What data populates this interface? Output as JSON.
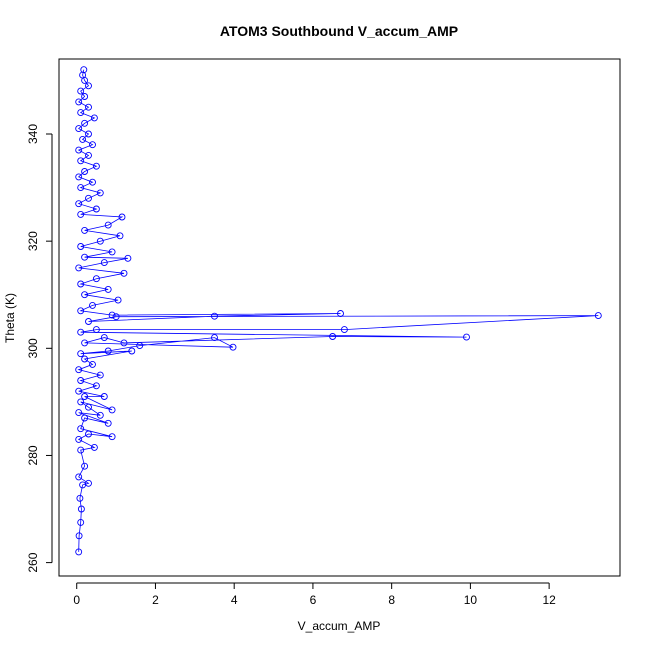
{
  "chart_data": {
    "type": "line",
    "title": "ATOM3 Southbound V_accum_AMP",
    "xlabel": "V_accum_AMP",
    "ylabel": "Theta (K)",
    "xlim": [
      -0.45,
      13.8
    ],
    "ylim": [
      257.5,
      354
    ],
    "xticks": [
      0,
      2,
      4,
      6,
      8,
      10,
      12
    ],
    "yticks": [
      260,
      280,
      300,
      320,
      340
    ],
    "grid": false,
    "legend": "none",
    "marker": "open-circle",
    "color": "#0000ff",
    "series": [
      {
        "points": [
          [
            0.05,
            262
          ],
          [
            0.06,
            265
          ],
          [
            0.1,
            267.5
          ],
          [
            0.12,
            270
          ],
          [
            0.08,
            272
          ],
          [
            0.15,
            274.5
          ],
          [
            0.3,
            274.8
          ],
          [
            0.05,
            276
          ],
          [
            0.2,
            278
          ],
          [
            0.1,
            281
          ],
          [
            0.45,
            281.5
          ],
          [
            0.05,
            283
          ],
          [
            0.3,
            284
          ],
          [
            0.9,
            283.5
          ],
          [
            0.1,
            285
          ],
          [
            0.2,
            287
          ],
          [
            0.8,
            286
          ],
          [
            0.05,
            288
          ],
          [
            0.6,
            287.5
          ],
          [
            0.3,
            289
          ],
          [
            0.1,
            290
          ],
          [
            0.9,
            288.5
          ],
          [
            0.2,
            291
          ],
          [
            0.7,
            291
          ],
          [
            0.05,
            292
          ],
          [
            0.5,
            293
          ],
          [
            0.1,
            294
          ],
          [
            0.6,
            295
          ],
          [
            0.05,
            296
          ],
          [
            0.4,
            297
          ],
          [
            0.2,
            298
          ],
          [
            1.4,
            299.5
          ],
          [
            0.1,
            299
          ],
          [
            0.8,
            299.5
          ],
          [
            1.6,
            300.5
          ],
          [
            3.5,
            302
          ],
          [
            3.97,
            300.2
          ],
          [
            0.2,
            301
          ],
          [
            0.7,
            302
          ],
          [
            1.2,
            301
          ],
          [
            6.5,
            302.2
          ],
          [
            9.9,
            302.1
          ],
          [
            0.1,
            303
          ],
          [
            0.5,
            303.5
          ],
          [
            6.8,
            303.5
          ],
          [
            13.25,
            306.1
          ],
          [
            1.0,
            305.9
          ],
          [
            0.3,
            305
          ],
          [
            3.5,
            306
          ],
          [
            6.7,
            306.5
          ],
          [
            0.9,
            306.2
          ],
          [
            0.1,
            307
          ],
          [
            0.4,
            308
          ],
          [
            1.05,
            309
          ],
          [
            0.2,
            310
          ],
          [
            0.8,
            311
          ],
          [
            0.1,
            312
          ],
          [
            0.5,
            313
          ],
          [
            1.2,
            314
          ],
          [
            0.05,
            315
          ],
          [
            0.7,
            316
          ],
          [
            1.3,
            316.8
          ],
          [
            0.2,
            317
          ],
          [
            0.9,
            318
          ],
          [
            0.1,
            319
          ],
          [
            0.6,
            320
          ],
          [
            1.1,
            321
          ],
          [
            0.2,
            322
          ],
          [
            0.8,
            323
          ],
          [
            1.15,
            324.5
          ],
          [
            0.1,
            325
          ],
          [
            0.5,
            326
          ],
          [
            0.05,
            327
          ],
          [
            0.3,
            328
          ],
          [
            0.6,
            329
          ],
          [
            0.1,
            330
          ],
          [
            0.4,
            331
          ],
          [
            0.05,
            332
          ],
          [
            0.2,
            333
          ],
          [
            0.5,
            334
          ],
          [
            0.1,
            335
          ],
          [
            0.3,
            336
          ],
          [
            0.05,
            337
          ],
          [
            0.4,
            338
          ],
          [
            0.15,
            339
          ],
          [
            0.3,
            340
          ],
          [
            0.05,
            341
          ],
          [
            0.2,
            342
          ],
          [
            0.45,
            343
          ],
          [
            0.1,
            344
          ],
          [
            0.3,
            345
          ],
          [
            0.05,
            346
          ],
          [
            0.2,
            347
          ],
          [
            0.1,
            348
          ],
          [
            0.3,
            349
          ],
          [
            0.2,
            350
          ],
          [
            0.15,
            351
          ],
          [
            0.18,
            352
          ]
        ]
      }
    ]
  }
}
